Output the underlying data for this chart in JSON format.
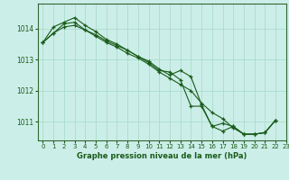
{
  "title": "Graphe pression niveau de la mer (hPa)",
  "background_color": "#cceee8",
  "grid_color": "#aaddcc",
  "line_color": "#1a5c1a",
  "marker_color": "#1a5c1a",
  "xlim": [
    -0.5,
    23
  ],
  "ylim": [
    1010.4,
    1014.8
  ],
  "yticks": [
    1011,
    1012,
    1013,
    1014
  ],
  "xticks": [
    0,
    1,
    2,
    3,
    4,
    5,
    6,
    7,
    8,
    9,
    10,
    11,
    12,
    13,
    14,
    15,
    16,
    17,
    18,
    19,
    20,
    21,
    22,
    23
  ],
  "series": [
    [
      1013.55,
      1013.85,
      1014.15,
      1014.2,
      1013.95,
      1013.8,
      1013.6,
      1013.45,
      1013.3,
      1013.1,
      1012.95,
      1012.7,
      1012.5,
      1012.65,
      1012.45,
      1011.55,
      1010.85,
      1010.7,
      1010.85,
      1010.6,
      1010.6,
      1010.65,
      1011.05
    ],
    [
      1013.55,
      1014.05,
      1014.2,
      1014.35,
      1014.1,
      1013.9,
      1013.65,
      1013.5,
      1013.3,
      1013.1,
      1012.9,
      1012.65,
      1012.6,
      1012.35,
      1011.5,
      1011.5,
      1010.85,
      1010.95,
      1010.85,
      1010.6,
      1010.6,
      1010.65,
      1011.05
    ],
    [
      1013.55,
      1013.85,
      1014.05,
      1014.1,
      1013.95,
      1013.75,
      1013.55,
      1013.4,
      1013.2,
      1013.05,
      1012.85,
      1012.6,
      1012.4,
      1012.2,
      1012.0,
      1011.6,
      1011.3,
      1011.1,
      1010.8,
      1010.6,
      1010.6,
      1010.65,
      1011.05
    ]
  ]
}
